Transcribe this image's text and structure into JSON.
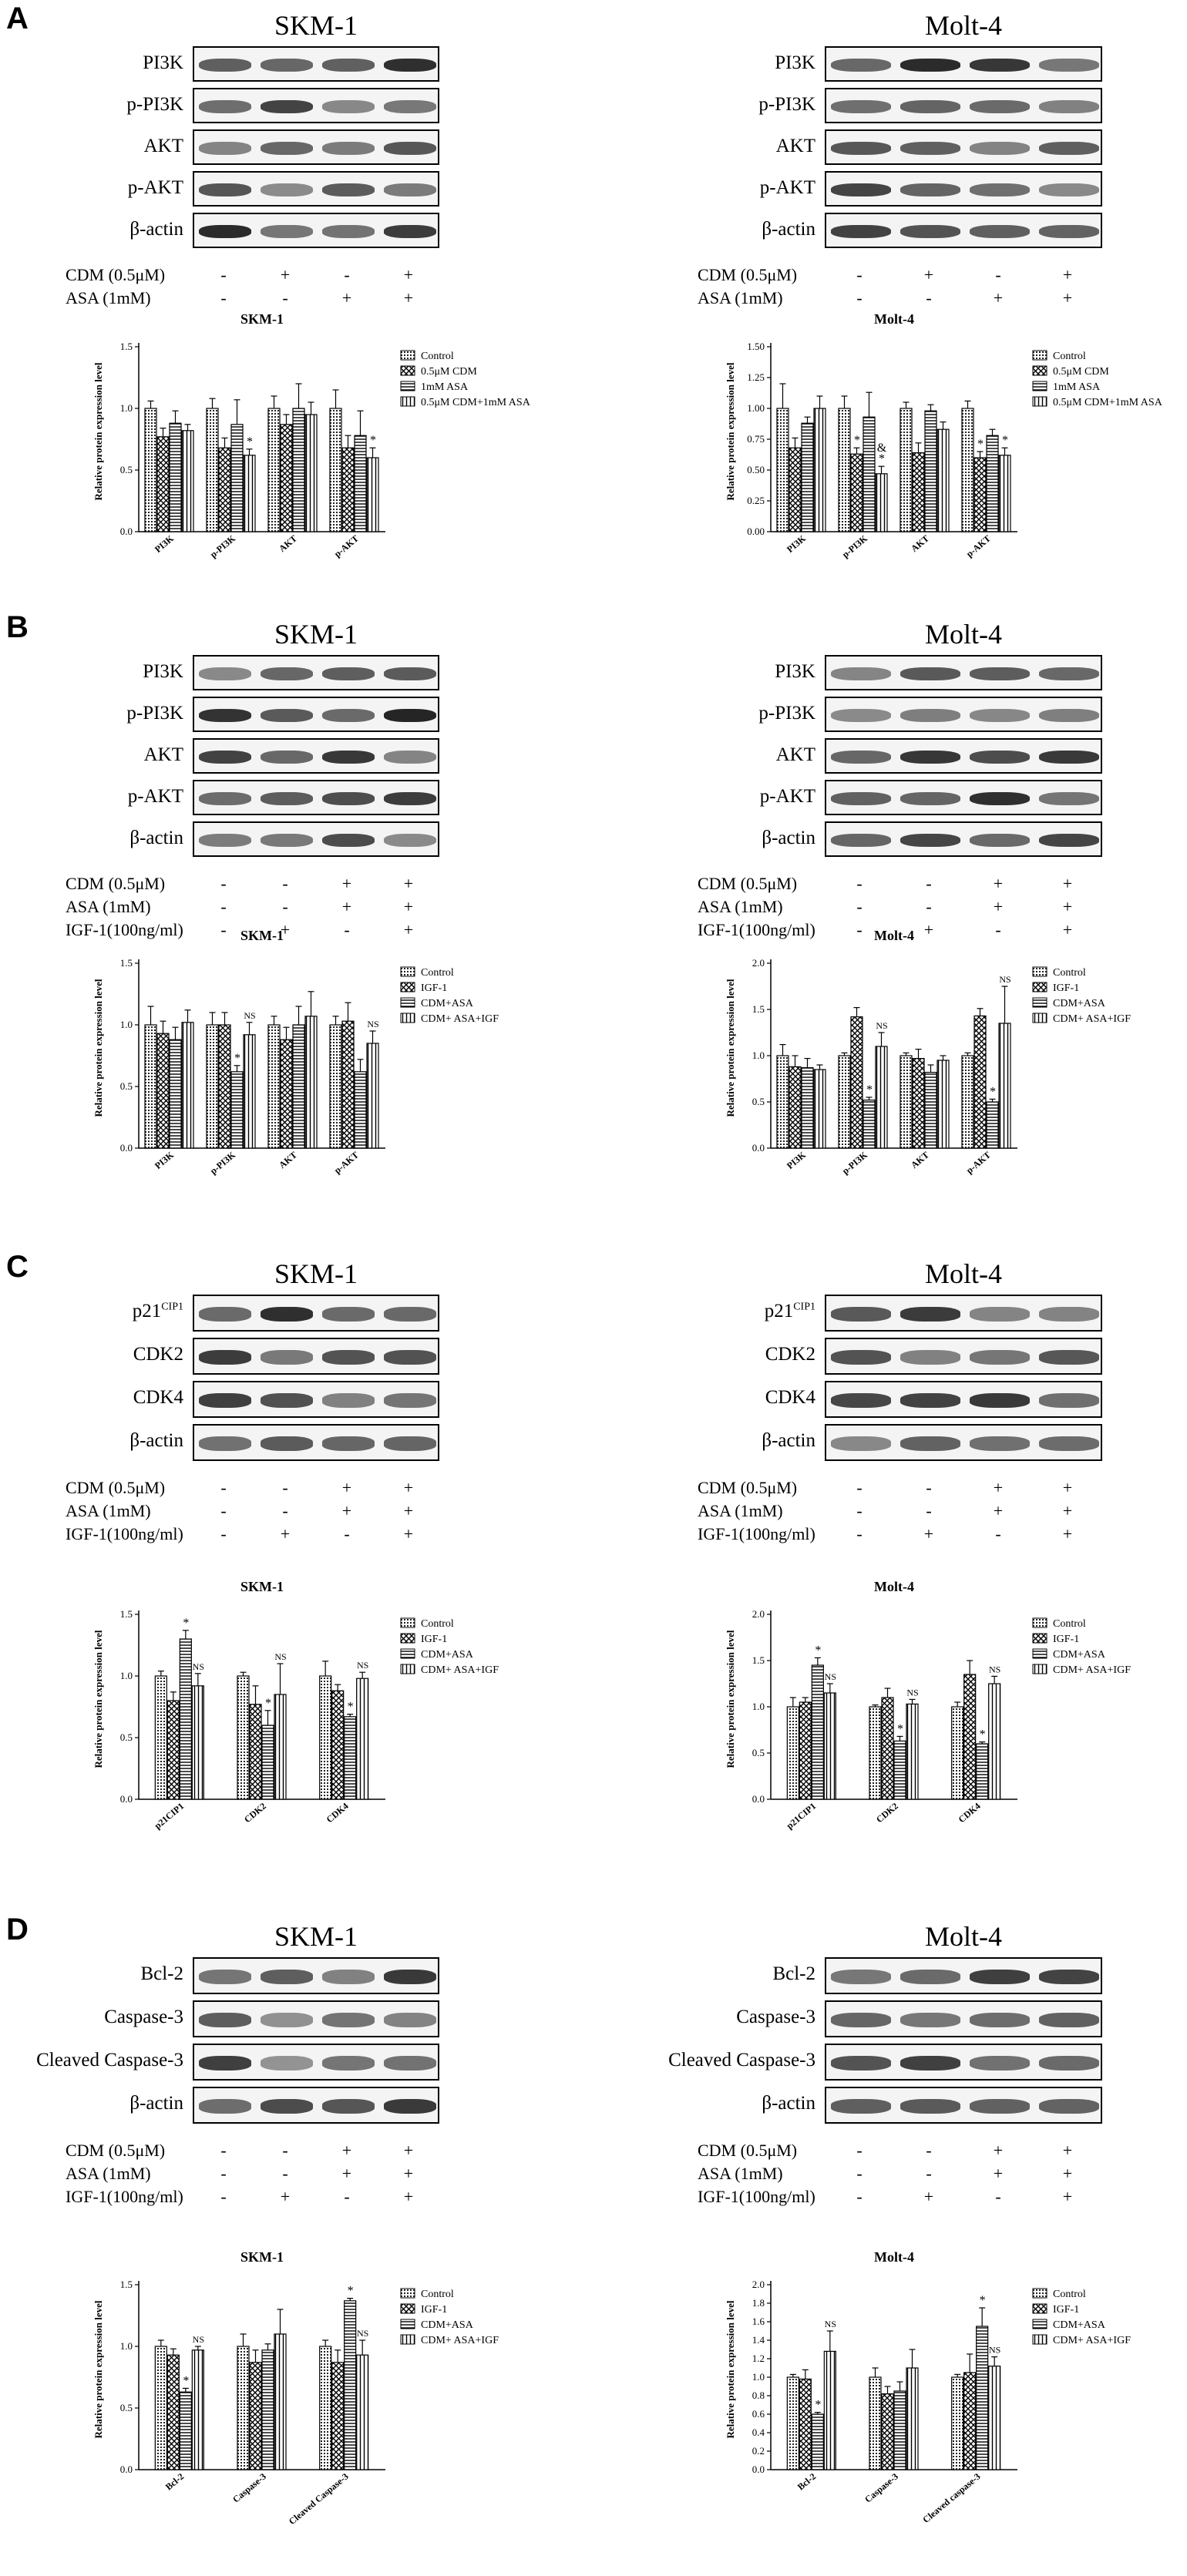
{
  "panels": [
    {
      "letter": "A",
      "blots": [
        {
          "title": "SKM-1",
          "rows": [
            "PI3K",
            "p-PI3K",
            "AKT",
            "p-AKT",
            "β-actin"
          ]
        },
        {
          "title": "Molt-4",
          "rows": [
            "PI3K",
            "p-PI3K",
            "AKT",
            "p-AKT",
            "β-actin"
          ]
        }
      ],
      "treatments": [
        {
          "label": "CDM (0.5μM)",
          "signs": [
            "-",
            "+",
            "-",
            "+"
          ]
        },
        {
          "label": "ASA (1mM)",
          "signs": [
            "-",
            "-",
            "+",
            "+"
          ]
        }
      ]
    },
    {
      "letter": "B",
      "blots": [
        {
          "title": "SKM-1",
          "rows": [
            "PI3K",
            "p-PI3K",
            "AKT",
            "p-AKT",
            "β-actin"
          ]
        },
        {
          "title": "Molt-4",
          "rows": [
            "PI3K",
            "p-PI3K",
            "AKT",
            "p-AKT",
            "β-actin"
          ]
        }
      ],
      "treatments": [
        {
          "label": "CDM (0.5μM)",
          "signs": [
            "-",
            "-",
            "+",
            "+"
          ]
        },
        {
          "label": "ASA (1mM)",
          "signs": [
            "-",
            "-",
            "+",
            "+"
          ]
        },
        {
          "label": "IGF-1(100ng/ml)",
          "signs": [
            "-",
            "+",
            "-",
            "+"
          ]
        }
      ]
    },
    {
      "letter": "C",
      "blots": [
        {
          "title": "SKM-1",
          "rows": [
            "p21",
            "CDK2",
            "CDK4",
            "β-actin"
          ]
        },
        {
          "title": "Molt-4",
          "rows": [
            "p21",
            "CDK2",
            "CDK4",
            "β-actin"
          ]
        }
      ],
      "p21_sup": "CIP1",
      "treatments": [
        {
          "label": "CDM (0.5μM)",
          "signs": [
            "-",
            "-",
            "+",
            "+"
          ]
        },
        {
          "label": "ASA (1mM)",
          "signs": [
            "-",
            "-",
            "+",
            "+"
          ]
        },
        {
          "label": "IGF-1(100ng/ml)",
          "signs": [
            "-",
            "+",
            "-",
            "+"
          ]
        }
      ]
    },
    {
      "letter": "D",
      "blots": [
        {
          "title": "SKM-1",
          "rows": [
            "Bcl-2",
            "Caspase-3",
            "Cleaved Caspase-3",
            "β-actin"
          ]
        },
        {
          "title": "Molt-4",
          "rows": [
            "Bcl-2",
            "Caspase-3",
            "Cleaved Caspase-3",
            "β-actin"
          ]
        }
      ],
      "treatments": [
        {
          "label": "CDM (0.5μM)",
          "signs": [
            "-",
            "-",
            "+",
            "+"
          ]
        },
        {
          "label": "ASA (1mM)",
          "signs": [
            "-",
            "-",
            "+",
            "+"
          ]
        },
        {
          "label": "IGF-1(100ng/ml)",
          "signs": [
            "-",
            "+",
            "-",
            "+"
          ]
        }
      ]
    }
  ],
  "chart_data": [
    {
      "type": "bar",
      "panel": "A",
      "title": "SKM-1",
      "ylabel": "Relative protein expression level",
      "xlabel": "",
      "ylim": [
        0,
        1.5
      ],
      "yticks": [
        0,
        0.5,
        1.0,
        1.5
      ],
      "ytick_labels": [
        "0.0",
        "0.5",
        "1.0",
        "1.5"
      ],
      "categories": [
        "PI3K",
        "p-PI3K",
        "AKT",
        "p-AKT"
      ],
      "series": [
        {
          "name": "Control",
          "pattern": "dots",
          "values": [
            1.0,
            1.0,
            1.0,
            1.0
          ],
          "errors": [
            0.06,
            0.08,
            0.1,
            0.15
          ]
        },
        {
          "name": "0.5μM CDM",
          "pattern": "cross",
          "values": [
            0.77,
            0.68,
            0.87,
            0.68
          ],
          "errors": [
            0.07,
            0.08,
            0.08,
            0.1
          ]
        },
        {
          "name": "1mM ASA",
          "pattern": "hlines",
          "values": [
            0.88,
            0.87,
            1.0,
            0.78
          ],
          "errors": [
            0.1,
            0.2,
            0.2,
            0.2
          ]
        },
        {
          "name": "0.5μM CDM+1mM ASA",
          "pattern": "vlines",
          "values": [
            0.82,
            0.62,
            0.95,
            0.6
          ],
          "errors": [
            0.05,
            0.05,
            0.1,
            0.08
          ]
        }
      ],
      "annotations": [
        {
          "category": 1,
          "series": 3,
          "text": "*"
        },
        {
          "category": 3,
          "series": 3,
          "text": "*"
        }
      ]
    },
    {
      "type": "bar",
      "panel": "A",
      "title": "Molt-4",
      "ylabel": "Relative protein expression level",
      "xlabel": "",
      "ylim": [
        0,
        1.5
      ],
      "yticks": [
        0,
        0.25,
        0.5,
        0.75,
        1.0,
        1.25,
        1.5
      ],
      "ytick_labels": [
        "0.00",
        "0.25",
        "0.50",
        "0.75",
        "1.00",
        "1.25",
        "1.50"
      ],
      "categories": [
        "PI3K",
        "p-PI3K",
        "AKT",
        "p-AKT"
      ],
      "series": [
        {
          "name": "Control",
          "pattern": "dots",
          "values": [
            1.0,
            1.0,
            1.0,
            1.0
          ],
          "errors": [
            0.2,
            0.1,
            0.05,
            0.06
          ]
        },
        {
          "name": "0.5μM CDM",
          "pattern": "cross",
          "values": [
            0.68,
            0.63,
            0.64,
            0.6
          ],
          "errors": [
            0.08,
            0.05,
            0.08,
            0.05
          ]
        },
        {
          "name": "1mM ASA",
          "pattern": "hlines",
          "values": [
            0.88,
            0.93,
            0.98,
            0.78
          ],
          "errors": [
            0.05,
            0.2,
            0.05,
            0.05
          ]
        },
        {
          "name": "0.5μM CDM+1mM ASA",
          "pattern": "vlines",
          "values": [
            1.0,
            0.47,
            0.83,
            0.62
          ],
          "errors": [
            0.1,
            0.06,
            0.06,
            0.06
          ]
        }
      ],
      "annotations": [
        {
          "category": 1,
          "series": 1,
          "text": "*"
        },
        {
          "category": 1,
          "series": 3,
          "text": "*"
        },
        {
          "category": 1,
          "series": 3,
          "text": "&"
        },
        {
          "category": 3,
          "series": 1,
          "text": "*"
        },
        {
          "category": 3,
          "series": 3,
          "text": "*"
        }
      ]
    },
    {
      "type": "bar",
      "panel": "B",
      "title": "SKM-1",
      "ylabel": "Relative protein expression level",
      "xlabel": "",
      "ylim": [
        0,
        1.5
      ],
      "yticks": [
        0,
        0.5,
        1.0,
        1.5
      ],
      "ytick_labels": [
        "0.0",
        "0.5",
        "1.0",
        "1.5"
      ],
      "categories": [
        "PI3K",
        "p-PI3K",
        "AKT",
        "p-AKT"
      ],
      "series": [
        {
          "name": "Control",
          "pattern": "dots",
          "values": [
            1.0,
            1.0,
            1.0,
            1.0
          ],
          "errors": [
            0.15,
            0.1,
            0.07,
            0.07
          ]
        },
        {
          "name": "IGF-1",
          "pattern": "cross",
          "values": [
            0.93,
            1.0,
            0.88,
            1.03
          ],
          "errors": [
            0.1,
            0.1,
            0.1,
            0.15
          ]
        },
        {
          "name": "CDM+ASA",
          "pattern": "hlines",
          "values": [
            0.88,
            0.62,
            1.0,
            0.62
          ],
          "errors": [
            0.1,
            0.05,
            0.15,
            0.1
          ]
        },
        {
          "name": "CDM+ ASA+IGF",
          "pattern": "vlines",
          "values": [
            1.02,
            0.92,
            1.07,
            0.85
          ],
          "errors": [
            0.1,
            0.1,
            0.2,
            0.1
          ]
        }
      ],
      "annotations": [
        {
          "category": 1,
          "series": 2,
          "text": "*"
        },
        {
          "category": 1,
          "series": 3,
          "text": "NS"
        },
        {
          "category": 3,
          "series": 3,
          "text": "NS"
        }
      ]
    },
    {
      "type": "bar",
      "panel": "B",
      "title": "Molt-4",
      "ylabel": "Relative protein expression level",
      "xlabel": "",
      "ylim": [
        0,
        2.0
      ],
      "yticks": [
        0,
        0.5,
        1.0,
        1.5,
        2.0
      ],
      "ytick_labels": [
        "0.0",
        "0.5",
        "1.0",
        "1.5",
        "2.0"
      ],
      "categories": [
        "PI3K",
        "p-PI3K",
        "AKT",
        "p-AKT"
      ],
      "series": [
        {
          "name": "Control",
          "pattern": "dots",
          "values": [
            1.0,
            1.0,
            1.0,
            1.0
          ],
          "errors": [
            0.12,
            0.03,
            0.03,
            0.03
          ]
        },
        {
          "name": "IGF-1",
          "pattern": "cross",
          "values": [
            0.88,
            1.42,
            0.97,
            1.43
          ],
          "errors": [
            0.12,
            0.1,
            0.1,
            0.08
          ]
        },
        {
          "name": "CDM+ASA",
          "pattern": "hlines",
          "values": [
            0.87,
            0.52,
            0.82,
            0.5
          ],
          "errors": [
            0.1,
            0.03,
            0.08,
            0.03
          ]
        },
        {
          "name": "CDM+ ASA+IGF",
          "pattern": "vlines",
          "values": [
            0.85,
            1.1,
            0.95,
            1.35
          ],
          "errors": [
            0.05,
            0.15,
            0.05,
            0.4
          ]
        }
      ],
      "annotations": [
        {
          "category": 1,
          "series": 2,
          "text": "*"
        },
        {
          "category": 1,
          "series": 3,
          "text": "NS"
        },
        {
          "category": 3,
          "series": 2,
          "text": "*"
        },
        {
          "category": 3,
          "series": 3,
          "text": "NS"
        }
      ]
    },
    {
      "type": "bar",
      "panel": "C",
      "title": "SKM-1",
      "ylabel": "Relative protein expression level",
      "xlabel": "",
      "ylim": [
        0,
        1.5
      ],
      "yticks": [
        0,
        0.5,
        1.0,
        1.5
      ],
      "ytick_labels": [
        "0.0",
        "0.5",
        "1.0",
        "1.5"
      ],
      "categories": [
        "p21CIP1",
        "CDK2",
        "CDK4"
      ],
      "series": [
        {
          "name": "Control",
          "pattern": "dots",
          "values": [
            1.0,
            1.0,
            1.0
          ],
          "errors": [
            0.04,
            0.03,
            0.12
          ]
        },
        {
          "name": "IGF-1",
          "pattern": "cross",
          "values": [
            0.8,
            0.77,
            0.88
          ],
          "errors": [
            0.07,
            0.15,
            0.05
          ]
        },
        {
          "name": "CDM+ASA",
          "pattern": "hlines",
          "values": [
            1.3,
            0.6,
            0.67
          ],
          "errors": [
            0.07,
            0.12,
            0.02
          ]
        },
        {
          "name": "CDM+ ASA+IGF",
          "pattern": "vlines",
          "values": [
            0.92,
            0.85,
            0.98
          ],
          "errors": [
            0.1,
            0.25,
            0.05
          ]
        }
      ],
      "annotations": [
        {
          "category": 0,
          "series": 2,
          "text": "*"
        },
        {
          "category": 0,
          "series": 3,
          "text": "NS"
        },
        {
          "category": 1,
          "series": 2,
          "text": "*"
        },
        {
          "category": 1,
          "series": 3,
          "text": "NS"
        },
        {
          "category": 2,
          "series": 2,
          "text": "*"
        },
        {
          "category": 2,
          "series": 3,
          "text": "NS"
        }
      ]
    },
    {
      "type": "bar",
      "panel": "C",
      "title": "Molt-4",
      "ylabel": "Relative protein expression level",
      "xlabel": "",
      "ylim": [
        0,
        2.0
      ],
      "yticks": [
        0,
        0.5,
        1.0,
        1.5,
        2.0
      ],
      "ytick_labels": [
        "0.0",
        "0.5",
        "1.0",
        "1.5",
        "2.0"
      ],
      "categories": [
        "p21CIP1",
        "CDK2",
        "CDK4"
      ],
      "series": [
        {
          "name": "Control",
          "pattern": "dots",
          "values": [
            1.0,
            1.0,
            1.0
          ],
          "errors": [
            0.1,
            0.02,
            0.05
          ]
        },
        {
          "name": "IGF-1",
          "pattern": "cross",
          "values": [
            1.05,
            1.1,
            1.35
          ],
          "errors": [
            0.05,
            0.1,
            0.15
          ]
        },
        {
          "name": "CDM+ASA",
          "pattern": "hlines",
          "values": [
            1.45,
            0.63,
            0.6
          ],
          "errors": [
            0.08,
            0.05,
            0.02
          ]
        },
        {
          "name": "CDM+ ASA+IGF",
          "pattern": "vlines",
          "values": [
            1.15,
            1.03,
            1.25
          ],
          "errors": [
            0.1,
            0.05,
            0.08
          ]
        }
      ],
      "annotations": [
        {
          "category": 0,
          "series": 2,
          "text": "*"
        },
        {
          "category": 0,
          "series": 3,
          "text": "NS"
        },
        {
          "category": 1,
          "series": 2,
          "text": "*"
        },
        {
          "category": 1,
          "series": 3,
          "text": "NS"
        },
        {
          "category": 2,
          "series": 2,
          "text": "*"
        },
        {
          "category": 2,
          "series": 3,
          "text": "NS"
        }
      ]
    },
    {
      "type": "bar",
      "panel": "D",
      "title": "SKM-1",
      "ylabel": "Relative protein expression level",
      "xlabel": "",
      "ylim": [
        0,
        1.5
      ],
      "yticks": [
        0,
        0.5,
        1.0,
        1.5
      ],
      "ytick_labels": [
        "0.0",
        "0.5",
        "1.0",
        "1.5"
      ],
      "categories": [
        "Bcl-2",
        "Caspase-3",
        "Cleaved Caspase-3"
      ],
      "series": [
        {
          "name": "Control",
          "pattern": "dots",
          "values": [
            1.0,
            1.0,
            1.0
          ],
          "errors": [
            0.05,
            0.1,
            0.05
          ]
        },
        {
          "name": "IGF-1",
          "pattern": "cross",
          "values": [
            0.93,
            0.87,
            0.87
          ],
          "errors": [
            0.05,
            0.1,
            0.1
          ]
        },
        {
          "name": "CDM+ASA",
          "pattern": "hlines",
          "values": [
            0.63,
            0.97,
            1.37
          ],
          "errors": [
            0.03,
            0.05,
            0.02
          ]
        },
        {
          "name": "CDM+ ASA+IGF",
          "pattern": "vlines",
          "values": [
            0.97,
            1.1,
            0.93
          ],
          "errors": [
            0.03,
            0.2,
            0.12
          ]
        }
      ],
      "annotations": [
        {
          "category": 0,
          "series": 2,
          "text": "*"
        },
        {
          "category": 0,
          "series": 3,
          "text": "NS"
        },
        {
          "category": 2,
          "series": 2,
          "text": "*"
        },
        {
          "category": 2,
          "series": 3,
          "text": "NS"
        }
      ]
    },
    {
      "type": "bar",
      "panel": "D",
      "title": "Molt-4",
      "ylabel": "Relative protein expression level",
      "xlabel": "",
      "ylim": [
        0,
        2.0
      ],
      "yticks": [
        0,
        0.2,
        0.4,
        0.6,
        0.8,
        1.0,
        1.2,
        1.4,
        1.6,
        1.8,
        2.0
      ],
      "ytick_labels": [
        "0.0",
        "0.2",
        "0.4",
        "0.6",
        "0.8",
        "1.0",
        "1.2",
        "1.4",
        "1.6",
        "1.8",
        "2.0"
      ],
      "categories": [
        "Bcl-2",
        "Caspase-3",
        "Cleaved caspase-3"
      ],
      "series": [
        {
          "name": "Control",
          "pattern": "dots",
          "values": [
            1.0,
            1.0,
            1.0
          ],
          "errors": [
            0.03,
            0.1,
            0.03
          ]
        },
        {
          "name": "IGF-1",
          "pattern": "cross",
          "values": [
            0.98,
            0.82,
            1.05
          ],
          "errors": [
            0.1,
            0.08,
            0.2
          ]
        },
        {
          "name": "CDM+ASA",
          "pattern": "hlines",
          "values": [
            0.6,
            0.85,
            1.55
          ],
          "errors": [
            0.02,
            0.1,
            0.2
          ]
        },
        {
          "name": "CDM+ ASA+IGF",
          "pattern": "vlines",
          "values": [
            1.28,
            1.1,
            1.12
          ],
          "errors": [
            0.22,
            0.2,
            0.1
          ]
        }
      ],
      "annotations": [
        {
          "category": 0,
          "series": 2,
          "text": "*"
        },
        {
          "category": 0,
          "series": 3,
          "text": "NS"
        },
        {
          "category": 2,
          "series": 2,
          "text": "*"
        },
        {
          "category": 2,
          "series": 3,
          "text": "NS"
        }
      ]
    }
  ]
}
